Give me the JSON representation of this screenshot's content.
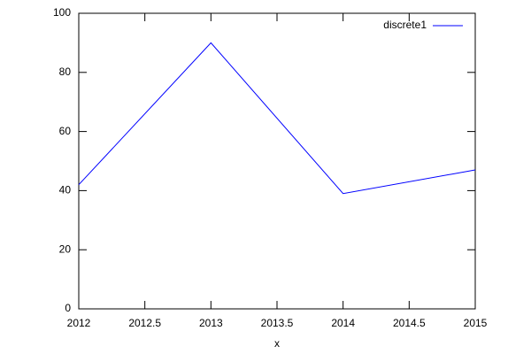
{
  "chart_data": {
    "type": "line",
    "xlabel": "x",
    "x": [
      2012,
      2013,
      2014,
      2015
    ],
    "series": [
      {
        "name": "discrete1",
        "color": "#0000ff",
        "values": [
          42,
          90,
          39,
          47
        ]
      }
    ],
    "xlim": [
      2012,
      2015
    ],
    "xticks": [
      2012,
      2012.5,
      2013,
      2013.5,
      2014,
      2014.5,
      2015
    ],
    "ylim": [
      0,
      100
    ],
    "yticks": [
      0,
      20,
      40,
      60,
      80,
      100
    ],
    "grid": false,
    "legend": "top-right"
  }
}
